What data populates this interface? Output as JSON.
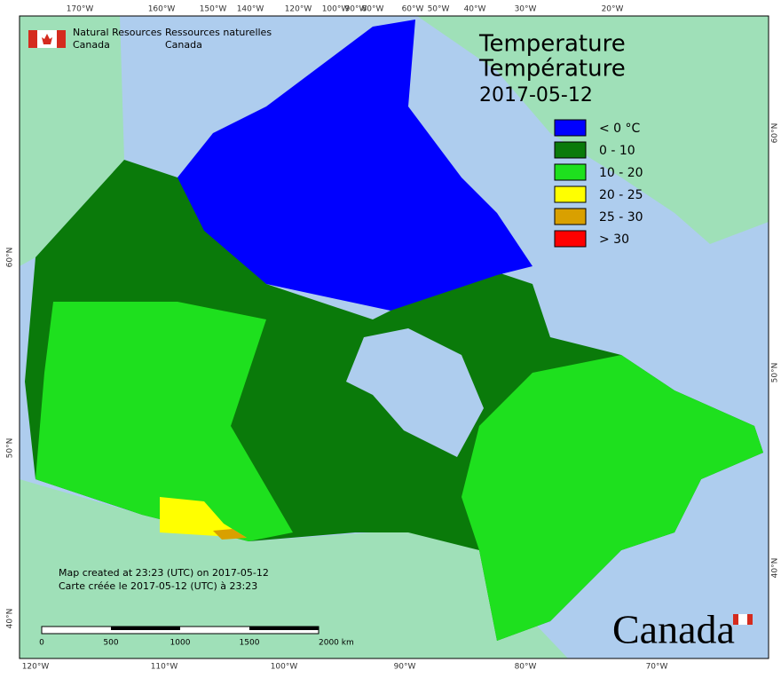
{
  "header": {
    "org_en": [
      "Natural Resources",
      "Canada"
    ],
    "org_fr": [
      "Ressources naturelles",
      "Canada"
    ]
  },
  "title": {
    "lines": [
      "Temperature",
      "Température"
    ],
    "date": "2017-05-12"
  },
  "legend": {
    "items": [
      {
        "label": "< 0 °C",
        "color": "#0000ff"
      },
      {
        "label": "0 - 10",
        "color": "#0a7a0a"
      },
      {
        "label": "10 - 20",
        "color": "#1ee01e"
      },
      {
        "label": "20 - 25",
        "color": "#ffff00"
      },
      {
        "label": "25 - 30",
        "color": "#d9a000"
      },
      {
        "label": "> 30",
        "color": "#ff0000"
      }
    ]
  },
  "credits": [
    "Map created at 23:23 (UTC) on 2017-05-12",
    "Carte créée le 2017-05-12 (UTC) à 23:23"
  ],
  "scale_bar": {
    "labels": [
      "0",
      "500",
      "1000",
      "1500",
      "2000 km"
    ]
  },
  "graticule": {
    "top": [
      "170°W",
      "160°W",
      "150°W",
      "140°W",
      "120°W",
      "100°W",
      "90°W",
      "80°W",
      "60°W",
      "50°W",
      "40°W",
      "30°W",
      "20°W"
    ],
    "bottom": [
      "120°W",
      "110°W",
      "100°W",
      "90°W",
      "80°W",
      "70°W"
    ],
    "left": [
      "60°N",
      "50°N",
      "40°N"
    ],
    "right": [
      "60°N",
      "50°N",
      "40°N"
    ]
  },
  "wordmark": "Canada"
}
